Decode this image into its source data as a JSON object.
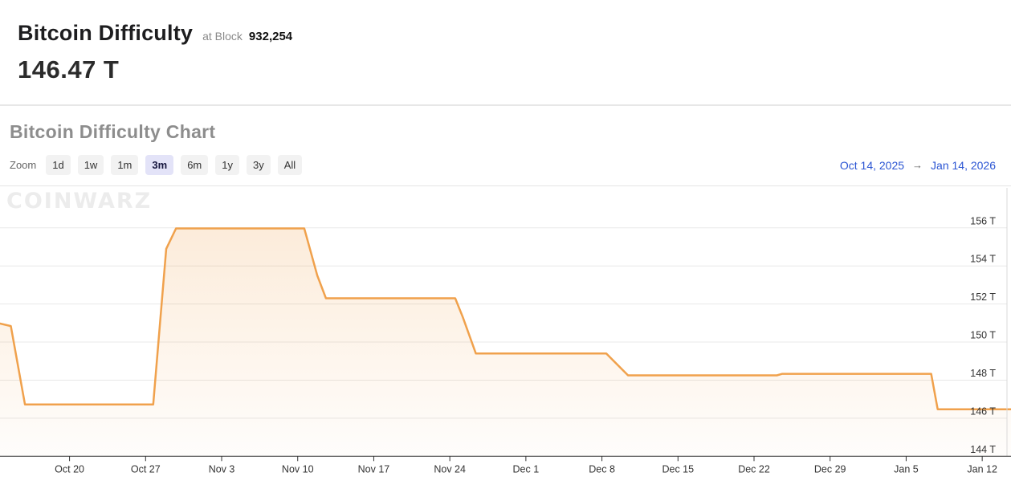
{
  "header": {
    "title": "Bitcoin Difficulty",
    "at_block_label": "at Block",
    "block_number": "932,254",
    "current_value": "146.47 T"
  },
  "chart_section": {
    "title": "Bitcoin Difficulty Chart",
    "zoom_label": "Zoom",
    "zoom_buttons": [
      "1d",
      "1w",
      "1m",
      "3m",
      "6m",
      "1y",
      "3y",
      "All"
    ],
    "active_zoom": "3m",
    "range_start": "Oct 14, 2025",
    "range_arrow": "→",
    "range_end": "Jan 14, 2026",
    "watermark": "COINWARZ"
  },
  "colors": {
    "link_blue": "#2b55d3",
    "grid": "#e8e8e8",
    "axis": "#333333",
    "axis_side": "#d9d9d9",
    "tick_text": "#333333",
    "selected_zoom_bg": "#e3e3f8",
    "button_bg": "#f2f2f2"
  },
  "chart_data": {
    "type": "area",
    "title": "Bitcoin Difficulty Chart",
    "series_name": "Bitcoin Difficulty",
    "x_unit": "days since Oct 14, 2025",
    "xlim_days": [
      -0.4,
      92.65
    ],
    "ylim": [
      144,
      158.1
    ],
    "y_ticks": [
      144,
      146,
      148,
      150,
      152,
      154,
      156
    ],
    "y_tick_suffix": " T",
    "x_tick_days": [
      6,
      13,
      20,
      27,
      34,
      41,
      48,
      55,
      62,
      69,
      76,
      83,
      90
    ],
    "x_tick_labels": [
      "Oct 20",
      "Oct 27",
      "Nov 3",
      "Nov 10",
      "Nov 17",
      "Nov 24",
      "Dec 1",
      "Dec 8",
      "Dec 15",
      "Dec 22",
      "Dec 29",
      "Jan 5",
      "Jan 12"
    ],
    "grid": true,
    "legend": false,
    "line_color": "#f0a14c",
    "line_width": 2.5,
    "fill_top": "rgba(240,161,76,0.24)",
    "fill_bottom": "rgba(240,161,76,0.02)",
    "points_day_value_T": [
      [
        -0.4,
        150.97
      ],
      [
        0.6,
        150.84
      ],
      [
        1.9,
        146.72
      ],
      [
        13.7,
        146.72
      ],
      [
        14.9,
        154.9
      ],
      [
        15.8,
        155.97
      ],
      [
        27.6,
        155.97
      ],
      [
        28.8,
        153.5
      ],
      [
        29.6,
        152.3
      ],
      [
        41.5,
        152.3
      ],
      [
        42.2,
        151.3
      ],
      [
        43.4,
        149.4
      ],
      [
        55.4,
        149.4
      ],
      [
        57.4,
        148.25
      ],
      [
        71.1,
        148.25
      ],
      [
        71.6,
        148.33
      ],
      [
        85.3,
        148.33
      ],
      [
        85.9,
        146.47
      ],
      [
        92.65,
        146.47
      ]
    ]
  }
}
